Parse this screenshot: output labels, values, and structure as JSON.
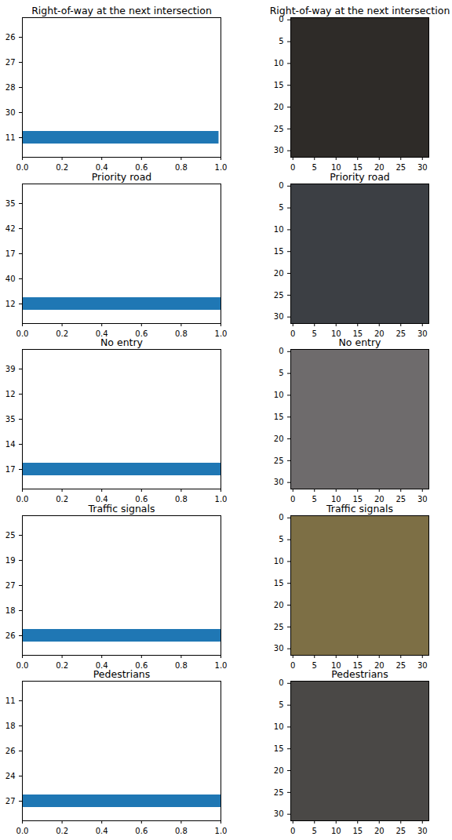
{
  "chart_data": [
    {
      "type": "bar",
      "orientation": "horizontal",
      "title": "Right-of-way at the next intersection",
      "categories": [
        "26",
        "27",
        "28",
        "30",
        "11"
      ],
      "values": [
        0,
        0,
        0,
        0,
        0.99
      ],
      "color": "#1f77b4",
      "xlim": [
        0,
        1
      ],
      "xticks": [
        {
          "value": 0,
          "label": "0.0"
        },
        0.2,
        0.4,
        0.6,
        0.8,
        {
          "value": 1,
          "label": "1.0"
        }
      ]
    },
    {
      "type": "image",
      "title": "Right-of-way at the next intersection",
      "color": "#2e2b28",
      "xlim": [
        -0.5,
        31.5
      ],
      "ylim": [
        31.5,
        -0.5
      ],
      "xticks": [
        0,
        5,
        10,
        15,
        20,
        25,
        30
      ],
      "yticks": [
        0,
        5,
        10,
        15,
        20,
        25,
        30
      ]
    },
    {
      "type": "bar",
      "orientation": "horizontal",
      "title": "Priority road",
      "categories": [
        "35",
        "42",
        "17",
        "40",
        "12"
      ],
      "values": [
        0,
        0,
        0,
        0,
        1
      ],
      "color": "#1f77b4",
      "xlim": [
        0,
        1
      ],
      "xticks": [
        {
          "value": 0,
          "label": "0.0"
        },
        0.2,
        0.4,
        0.6,
        0.8,
        {
          "value": 1,
          "label": "1.0"
        }
      ]
    },
    {
      "type": "image",
      "title": "Priority road",
      "color": "#3c3f44",
      "xlim": [
        -0.5,
        31.5
      ],
      "ylim": [
        31.5,
        -0.5
      ],
      "xticks": [
        0,
        5,
        10,
        15,
        20,
        25,
        30
      ],
      "yticks": [
        0,
        5,
        10,
        15,
        20,
        25,
        30
      ]
    },
    {
      "type": "bar",
      "orientation": "horizontal",
      "title": "No entry",
      "categories": [
        "39",
        "12",
        "35",
        "14",
        "17"
      ],
      "values": [
        0,
        0,
        0,
        0,
        1
      ],
      "color": "#1f77b4",
      "xlim": [
        0,
        1
      ],
      "xticks": [
        {
          "value": 0,
          "label": "0.0"
        },
        0.2,
        0.4,
        0.6,
        0.8,
        {
          "value": 1,
          "label": "1.0"
        }
      ]
    },
    {
      "type": "image",
      "title": "No entry",
      "color": "#6e6b6c",
      "xlim": [
        -0.5,
        31.5
      ],
      "ylim": [
        31.5,
        -0.5
      ],
      "xticks": [
        0,
        5,
        10,
        15,
        20,
        25,
        30
      ],
      "yticks": [
        0,
        5,
        10,
        15,
        20,
        25,
        30
      ]
    },
    {
      "type": "bar",
      "orientation": "horizontal",
      "title": "Traffic signals",
      "categories": [
        "25",
        "19",
        "27",
        "18",
        "26"
      ],
      "values": [
        0,
        0,
        0,
        0,
        1
      ],
      "color": "#1f77b4",
      "xlim": [
        0,
        1
      ],
      "xticks": [
        {
          "value": 0,
          "label": "0.0"
        },
        0.2,
        0.4,
        0.6,
        0.8,
        {
          "value": 1,
          "label": "1.0"
        }
      ]
    },
    {
      "type": "image",
      "title": "Traffic signals",
      "color": "#7d6f45",
      "xlim": [
        -0.5,
        31.5
      ],
      "ylim": [
        31.5,
        -0.5
      ],
      "xticks": [
        0,
        5,
        10,
        15,
        20,
        25,
        30
      ],
      "yticks": [
        0,
        5,
        10,
        15,
        20,
        25,
        30
      ]
    },
    {
      "type": "bar",
      "orientation": "horizontal",
      "title": "Pedestrians",
      "categories": [
        "11",
        "18",
        "26",
        "24",
        "27"
      ],
      "values": [
        0,
        0,
        0,
        0,
        1
      ],
      "color": "#1f77b4",
      "xlim": [
        0,
        1
      ],
      "xticks": [
        {
          "value": 0,
          "label": "0.0"
        },
        0.2,
        0.4,
        0.6,
        0.8,
        {
          "value": 1,
          "label": "1.0"
        }
      ]
    },
    {
      "type": "image",
      "title": "Pedestrians",
      "color": "#4a4846",
      "xlim": [
        -0.5,
        31.5
      ],
      "ylim": [
        31.5,
        -0.5
      ],
      "xticks": [
        0,
        5,
        10,
        15,
        20,
        25,
        30
      ],
      "yticks": [
        0,
        5,
        10,
        15,
        20,
        25,
        30
      ]
    }
  ]
}
